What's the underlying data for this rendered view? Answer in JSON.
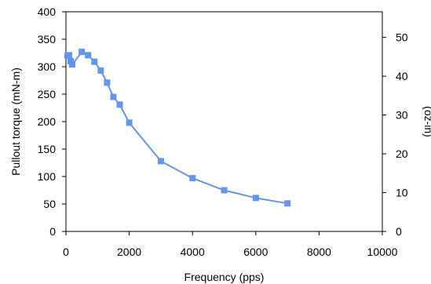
{
  "chart_data": {
    "type": "line",
    "xlabel": "Frequency (pps)",
    "ylabel_left": "Pullout torque (mN-m)",
    "ylabel_right": "(oz-in)",
    "xlim": [
      0,
      10000
    ],
    "ylim": [
      0,
      400
    ],
    "y2lim": [
      0,
      56.6
    ],
    "x_ticks": [
      "0",
      "2000",
      "4000",
      "6000",
      "8000",
      "10000"
    ],
    "y_ticks": [
      "0",
      "50",
      "100",
      "150",
      "200",
      "250",
      "300",
      "350",
      "400"
    ],
    "y2_ticks": [
      "0",
      "10",
      "20",
      "30",
      "40",
      "50"
    ],
    "grid": false,
    "line_color": "#6495ed",
    "marker": "square",
    "series": [
      {
        "x": [
          50,
          100,
          150,
          200,
          500,
          700,
          900,
          1100,
          1300,
          1500,
          1700,
          2000,
          3000,
          4000,
          5000,
          6000,
          7000
        ],
        "y": [
          320,
          321,
          310,
          304,
          327,
          321,
          309,
          293,
          271,
          245,
          231,
          198,
          128,
          97,
          75,
          61,
          51
        ]
      }
    ]
  }
}
